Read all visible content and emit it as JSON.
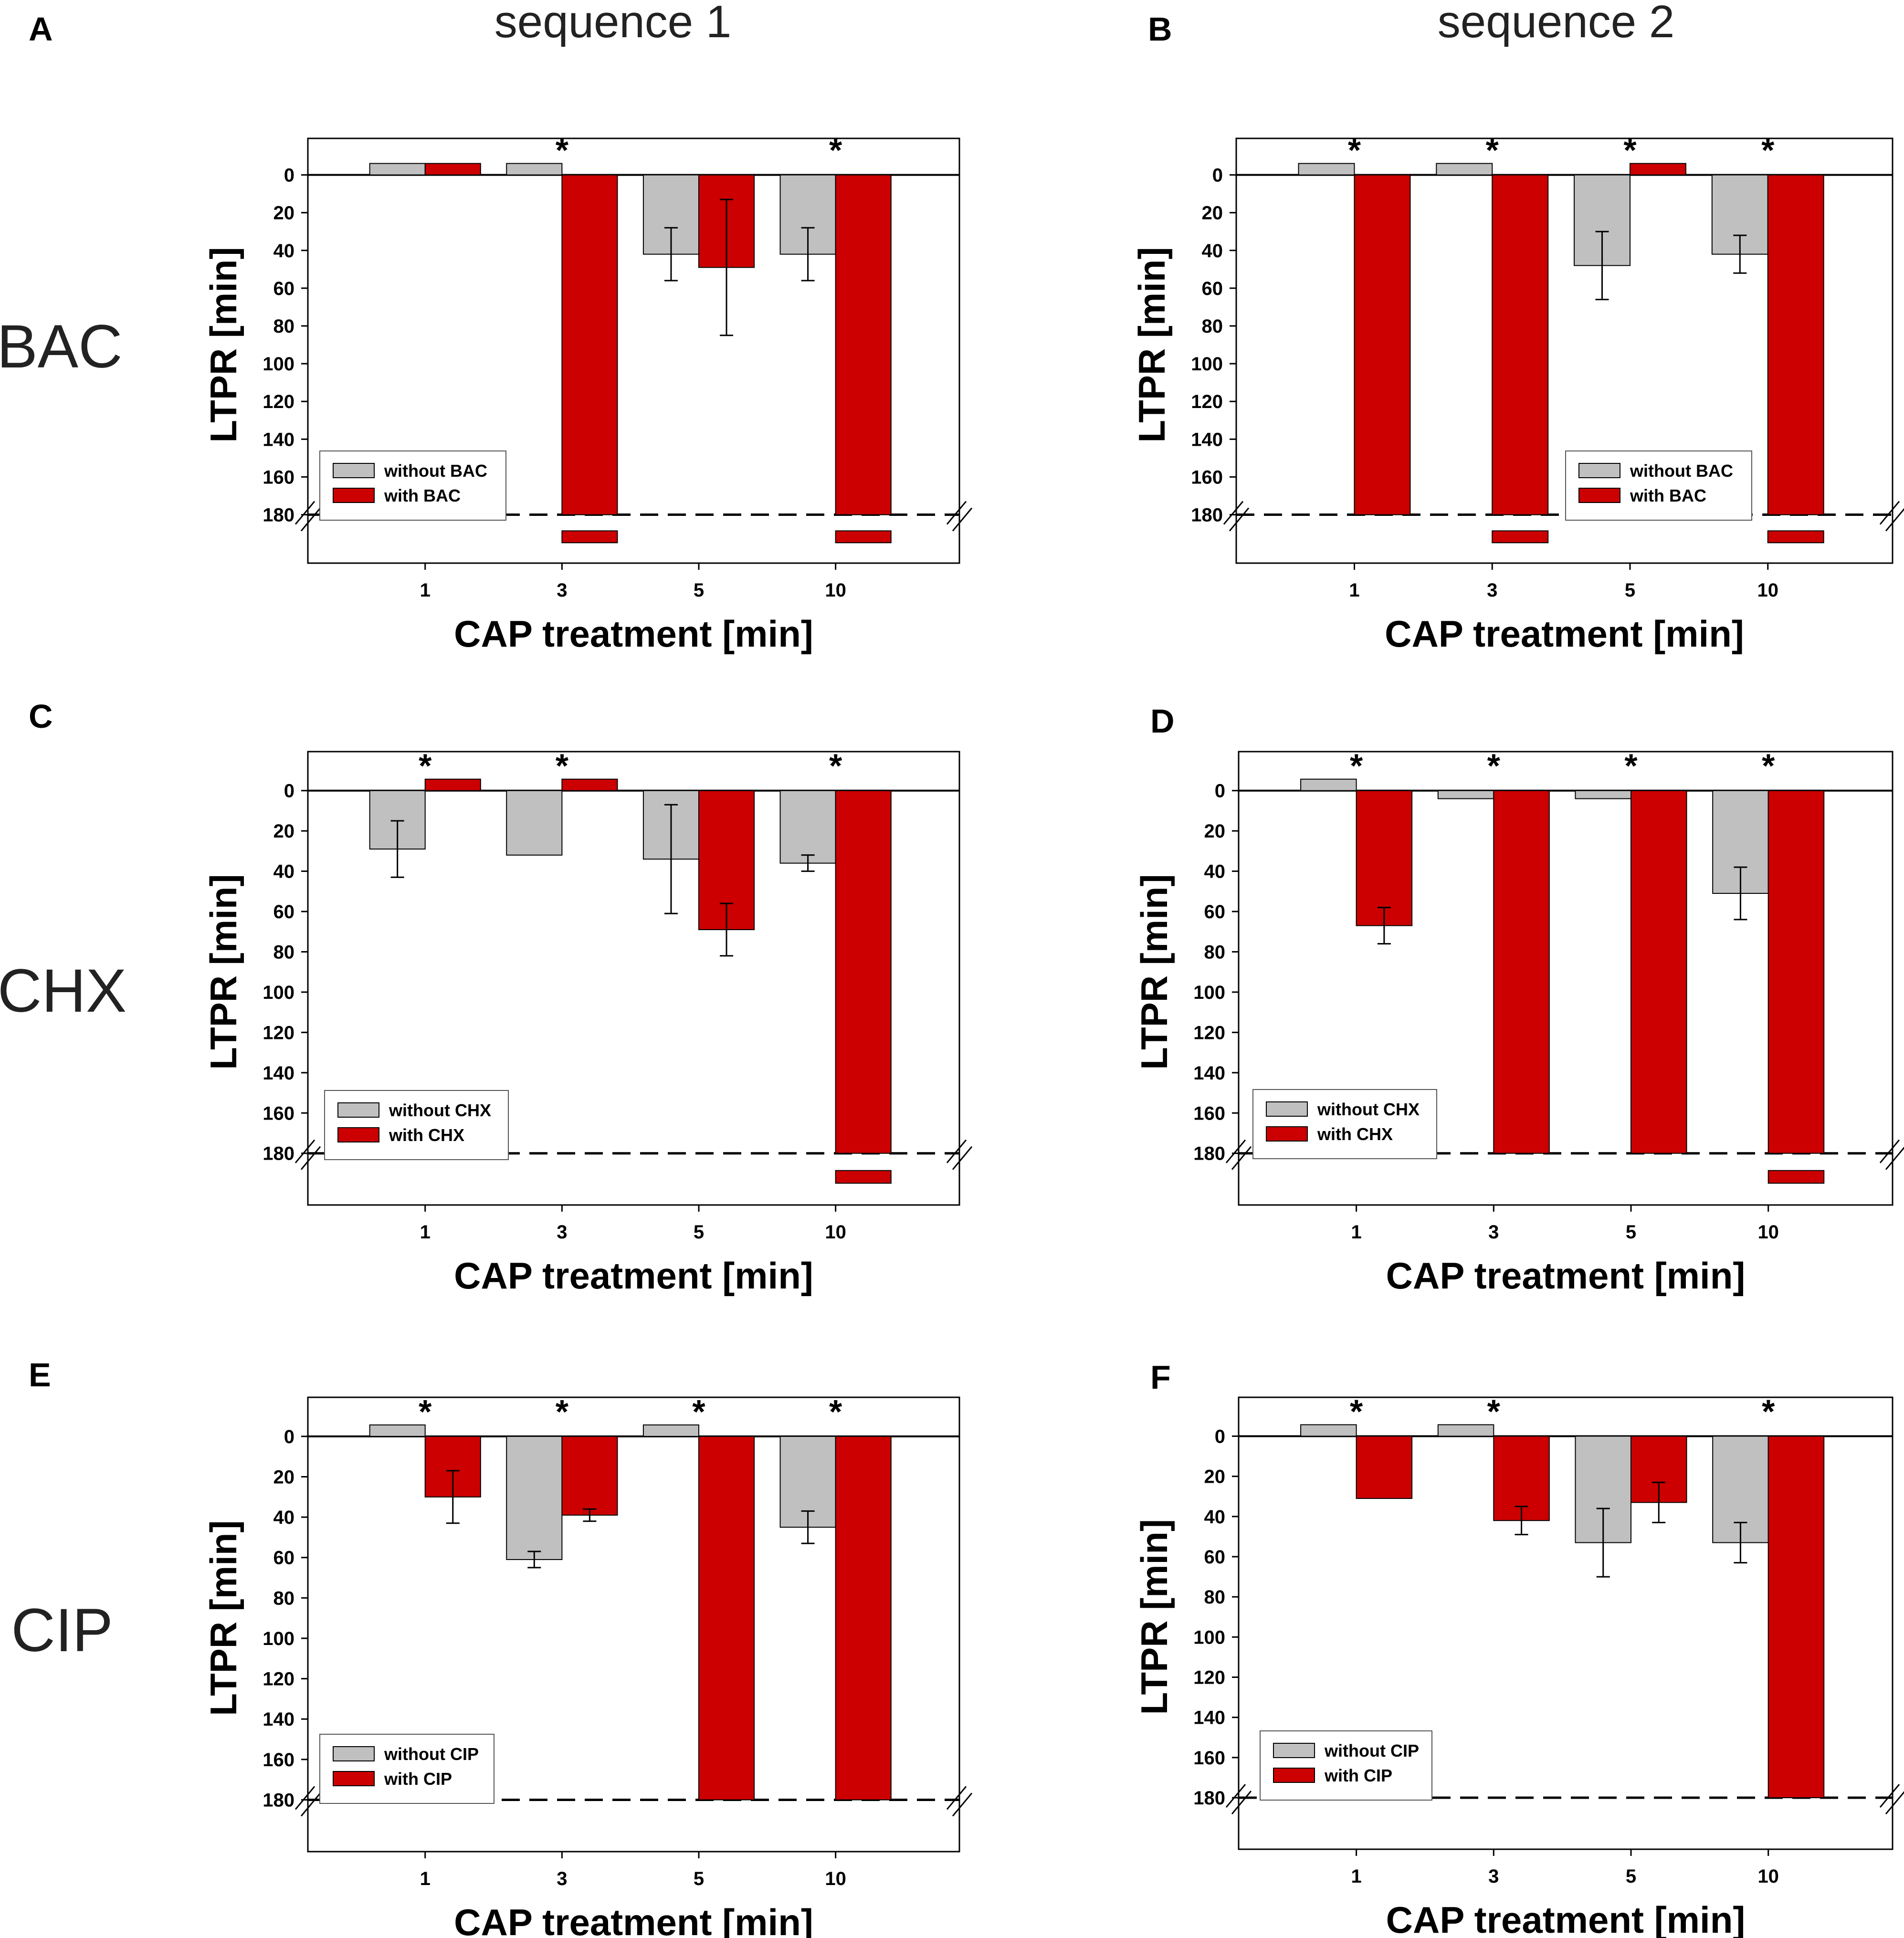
{
  "figure": {
    "column_titles": [
      "sequence 1",
      "sequence 2"
    ],
    "row_labels": [
      "BAC",
      "CHX",
      "CIP"
    ],
    "colors": {
      "without": "#c0c0c0",
      "with": "#cc0000",
      "axis": "#000000"
    }
  },
  "chart_data": [
    {
      "panel": "A",
      "type": "bar",
      "title": "sequence 1",
      "row_label": "BAC",
      "xlabel": "CAP treatment [min]",
      "ylabel": "LTPR [min]",
      "ylim": [
        0,
        180
      ],
      "yticks": [
        "0",
        "20",
        "40",
        "60",
        "80",
        "100",
        "120",
        "140",
        "160",
        "180"
      ],
      "categories": [
        "1",
        "3",
        "5",
        "10"
      ],
      "series": [
        {
          "name": "without BAC",
          "values": [
            0,
            0,
            42,
            42
          ],
          "errors": [
            0,
            0,
            14,
            14
          ],
          "above_break": [
            false,
            false,
            false,
            false
          ]
        },
        {
          "name": "with BAC",
          "values": [
            0,
            180,
            49,
            180
          ],
          "errors": [
            0,
            0,
            36,
            0
          ],
          "above_break": [
            false,
            true,
            false,
            true
          ]
        }
      ],
      "significant": [
        false,
        true,
        false,
        true
      ],
      "legend": [
        "without BAC",
        "with BAC"
      ],
      "legend_position": "lower-left"
    },
    {
      "panel": "B",
      "type": "bar",
      "title": "sequence 2",
      "row_label": "BAC",
      "xlabel": "CAP treatment [min]",
      "ylabel": "LTPR [min]",
      "ylim": [
        0,
        180
      ],
      "yticks": [
        "0",
        "20",
        "40",
        "60",
        "80",
        "100",
        "120",
        "140",
        "160",
        "180"
      ],
      "categories": [
        "1",
        "3",
        "5",
        "10"
      ],
      "series": [
        {
          "name": "without BAC",
          "values": [
            0,
            0,
            48,
            42
          ],
          "errors": [
            0,
            0,
            18,
            10
          ],
          "above_break": [
            false,
            false,
            false,
            false
          ]
        },
        {
          "name": "with BAC",
          "values": [
            180,
            180,
            0,
            180
          ],
          "errors": [
            0,
            0,
            0,
            0
          ],
          "above_break": [
            false,
            true,
            false,
            true
          ]
        }
      ],
      "significant": [
        true,
        true,
        true,
        true
      ],
      "legend": [
        "without BAC",
        "with BAC"
      ],
      "legend_position": "lower-right"
    },
    {
      "panel": "C",
      "type": "bar",
      "title": "sequence 1",
      "row_label": "CHX",
      "xlabel": "CAP treatment [min]",
      "ylabel": "LTPR [min]",
      "ylim": [
        0,
        180
      ],
      "yticks": [
        "0",
        "20",
        "40",
        "60",
        "80",
        "100",
        "120",
        "140",
        "160",
        "180"
      ],
      "categories": [
        "1",
        "3",
        "5",
        "10"
      ],
      "series": [
        {
          "name": "without CHX",
          "values": [
            29,
            32,
            34,
            36
          ],
          "errors": [
            14,
            0,
            27,
            4
          ],
          "above_break": [
            false,
            false,
            false,
            false
          ]
        },
        {
          "name": "with CHX",
          "values": [
            0,
            0,
            69,
            180
          ],
          "errors": [
            0,
            0,
            13,
            0
          ],
          "above_break": [
            false,
            false,
            false,
            true
          ]
        }
      ],
      "significant": [
        true,
        true,
        false,
        true
      ],
      "legend": [
        "without CHX",
        "with CHX"
      ],
      "legend_position": "lower-left"
    },
    {
      "panel": "D",
      "type": "bar",
      "title": "sequence 2",
      "row_label": "CHX",
      "xlabel": "CAP treatment [min]",
      "ylabel": "LTPR [min]",
      "ylim": [
        0,
        180
      ],
      "yticks": [
        "0",
        "20",
        "40",
        "60",
        "80",
        "100",
        "120",
        "140",
        "160",
        "180"
      ],
      "categories": [
        "1",
        "3",
        "5",
        "10"
      ],
      "series": [
        {
          "name": "without CHX",
          "values": [
            0,
            4,
            4,
            51
          ],
          "errors": [
            0,
            0,
            0,
            13
          ],
          "above_break": [
            false,
            false,
            false,
            false
          ]
        },
        {
          "name": "with CHX",
          "values": [
            67,
            180,
            180,
            180
          ],
          "errors": [
            9,
            0,
            0,
            0
          ],
          "above_break": [
            false,
            false,
            false,
            true
          ]
        }
      ],
      "significant": [
        true,
        true,
        true,
        true
      ],
      "legend": [
        "without CHX",
        "with CHX"
      ],
      "legend_position": "lower-left"
    },
    {
      "panel": "E",
      "type": "bar",
      "title": "sequence 1",
      "row_label": "CIP",
      "xlabel": "CAP treatment [min]",
      "ylabel": "LTPR [min]",
      "ylim": [
        0,
        180
      ],
      "yticks": [
        "0",
        "20",
        "40",
        "60",
        "80",
        "100",
        "120",
        "140",
        "160",
        "180"
      ],
      "categories": [
        "1",
        "3",
        "5",
        "10"
      ],
      "series": [
        {
          "name": "without CIP",
          "values": [
            0,
            61,
            0,
            45
          ],
          "errors": [
            0,
            4,
            0,
            8
          ],
          "above_break": [
            false,
            false,
            false,
            false
          ]
        },
        {
          "name": "with CIP",
          "values": [
            30,
            39,
            180,
            180
          ],
          "errors": [
            13,
            3,
            0,
            0
          ],
          "above_break": [
            false,
            false,
            false,
            false
          ]
        }
      ],
      "significant": [
        true,
        true,
        true,
        true
      ],
      "legend": [
        "without CIP",
        "with CIP"
      ],
      "legend_position": "lower-left"
    },
    {
      "panel": "F",
      "type": "bar",
      "title": "sequence 2",
      "row_label": "CIP",
      "xlabel": "CAP treatment [min]",
      "ylabel": "LTPR [min]",
      "ylim": [
        0,
        180
      ],
      "yticks": [
        "0",
        "20",
        "40",
        "60",
        "80",
        "100",
        "120",
        "140",
        "160",
        "180"
      ],
      "categories": [
        "1",
        "3",
        "5",
        "10"
      ],
      "series": [
        {
          "name": "without CIP",
          "values": [
            0,
            0,
            53,
            53
          ],
          "errors": [
            0,
            0,
            17,
            10
          ],
          "above_break": [
            false,
            false,
            false,
            false
          ]
        },
        {
          "name": "with CIP",
          "values": [
            31,
            42,
            33,
            180
          ],
          "errors": [
            0,
            7,
            10,
            0
          ],
          "above_break": [
            false,
            false,
            false,
            false
          ]
        }
      ],
      "significant": [
        true,
        true,
        false,
        true
      ],
      "legend": [
        "without CIP",
        "with CIP"
      ],
      "legend_position": "lower-left"
    }
  ]
}
